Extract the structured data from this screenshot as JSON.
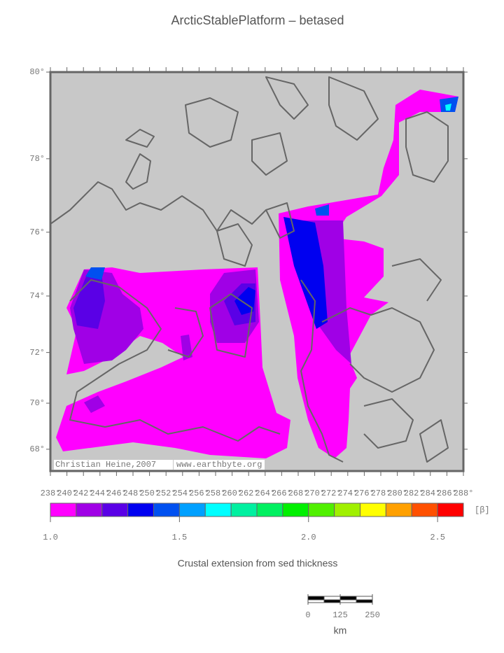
{
  "title": "ArcticStablePlatform – betased",
  "map": {
    "lat_ticks": [
      {
        "value": 80,
        "label": "80°"
      },
      {
        "value": 78,
        "label": "78°"
      },
      {
        "value": 76,
        "label": "76°"
      },
      {
        "value": 74,
        "label": "74°"
      },
      {
        "value": 72,
        "label": "72°"
      },
      {
        "value": 70,
        "label": "70°"
      },
      {
        "value": 68,
        "label": "68°"
      }
    ],
    "lon_ticks": [
      {
        "value": 238,
        "label": "238°"
      },
      {
        "value": 240,
        "label": "240°"
      },
      {
        "value": 242,
        "label": "242°"
      },
      {
        "value": 244,
        "label": "244°"
      },
      {
        "value": 246,
        "label": "246°"
      },
      {
        "value": 248,
        "label": "248°"
      },
      {
        "value": 250,
        "label": "250°"
      },
      {
        "value": 252,
        "label": "252°"
      },
      {
        "value": 254,
        "label": "254°"
      },
      {
        "value": 256,
        "label": "256°"
      },
      {
        "value": 258,
        "label": "258°"
      },
      {
        "value": 260,
        "label": "260°"
      },
      {
        "value": 262,
        "label": "262°"
      },
      {
        "value": 264,
        "label": "264°"
      },
      {
        "value": 266,
        "label": "266°"
      },
      {
        "value": 268,
        "label": "268°"
      },
      {
        "value": 270,
        "label": "270°"
      },
      {
        "value": 272,
        "label": "272°"
      },
      {
        "value": 274,
        "label": "274°"
      },
      {
        "value": 276,
        "label": "276°"
      },
      {
        "value": 278,
        "label": "278°"
      },
      {
        "value": 280,
        "label": "280°"
      },
      {
        "value": 282,
        "label": "282°"
      },
      {
        "value": 284,
        "label": "284°"
      },
      {
        "value": 286,
        "label": "286°"
      },
      {
        "value": 288,
        "label": "288°"
      }
    ],
    "credit": "Christian Heine,2007",
    "url": "www.earthbyte.org"
  },
  "colorbar": {
    "bounds": [
      1.0,
      1.1,
      1.2,
      1.3,
      1.4,
      1.5,
      1.6,
      1.7,
      1.8,
      1.9,
      2.0,
      2.1,
      2.2,
      2.3,
      2.4,
      2.5,
      2.6
    ],
    "colors": [
      "#ff00ff",
      "#a000e6",
      "#5a00e6",
      "#0000f0",
      "#0050f0",
      "#00a0ff",
      "#00ffff",
      "#00f0a0",
      "#00f060",
      "#00f000",
      "#50f000",
      "#a0f000",
      "#ffff00",
      "#ffa000",
      "#ff5000",
      "#ff0000"
    ],
    "ticks": [
      {
        "value": 1.0,
        "label": "1.0"
      },
      {
        "value": 1.5,
        "label": "1.5"
      },
      {
        "value": 2.0,
        "label": "2.0"
      },
      {
        "value": 2.5,
        "label": "2.5"
      }
    ],
    "unit": "[β]",
    "label": "Crustal extension from sed thickness"
  },
  "scale_bar": {
    "ticks": [
      0,
      125,
      250
    ],
    "unit": "km"
  }
}
